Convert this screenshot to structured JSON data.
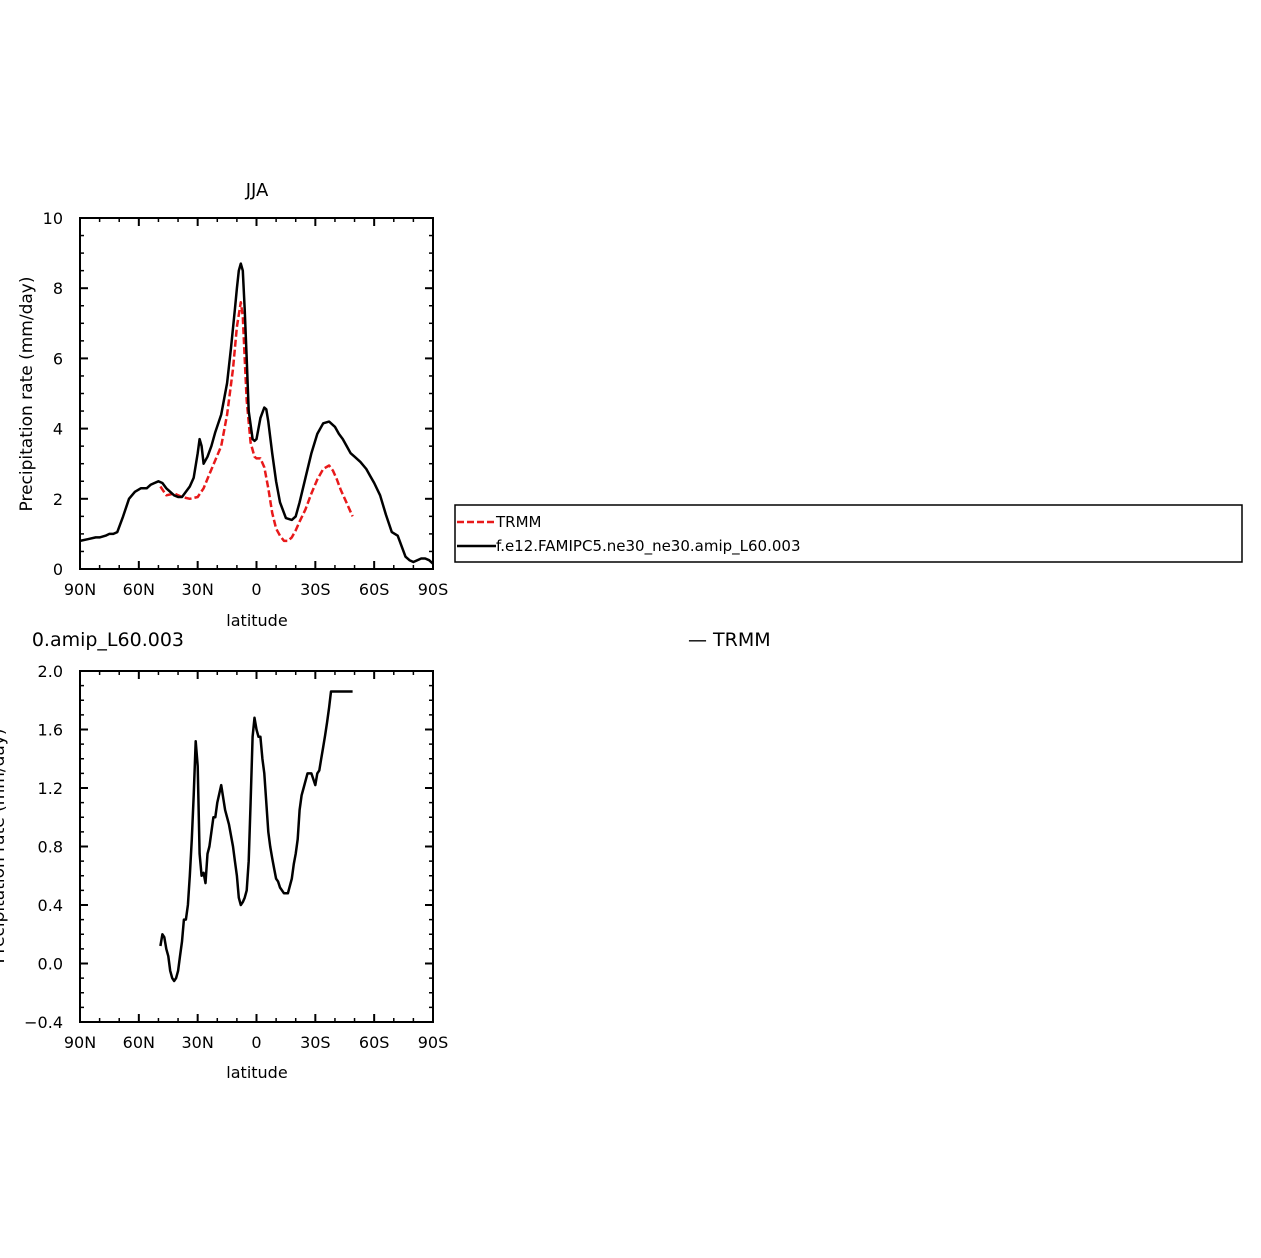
{
  "chart_data": [
    {
      "type": "line",
      "title": "JJA",
      "xlabel": "latitude",
      "ylabel": "Precipitation rate (mm/day)",
      "xlim": [
        90,
        -90
      ],
      "ylim": [
        0,
        10
      ],
      "xticks": [
        90,
        60,
        30,
        0,
        -30,
        -60,
        -90
      ],
      "xtick_labels": [
        "90N",
        "60N",
        "30N",
        "0",
        "30S",
        "60S",
        "90S"
      ],
      "yticks": [
        0,
        2,
        4,
        6,
        8,
        10
      ],
      "ytick_labels": [
        "0",
        "2",
        "4",
        "6",
        "8",
        "10"
      ],
      "grid": false,
      "legend_position": "right",
      "series": [
        {
          "name": "TRMM",
          "color": "#e8191a",
          "dash": "dashed",
          "x": [
            49,
            46,
            42,
            38,
            34,
            30,
            27,
            24,
            21,
            18,
            15,
            12,
            10,
            8,
            7,
            6,
            5,
            3,
            1,
            0,
            -2,
            -4,
            -6,
            -8,
            -10,
            -12,
            -14,
            -16,
            -18,
            -20,
            -22,
            -25,
            -28,
            -31,
            -34,
            -37,
            -39,
            -41,
            -43,
            -45,
            -47,
            -49
          ],
          "y": [
            2.35,
            2.1,
            2.15,
            2.05,
            2.0,
            2.05,
            2.3,
            2.7,
            3.1,
            3.5,
            4.4,
            5.7,
            6.9,
            7.6,
            7.2,
            6.0,
            4.8,
            3.6,
            3.2,
            3.15,
            3.15,
            2.9,
            2.3,
            1.6,
            1.15,
            0.95,
            0.8,
            0.8,
            0.9,
            1.1,
            1.35,
            1.7,
            2.15,
            2.55,
            2.85,
            2.95,
            2.8,
            2.55,
            2.25,
            2.0,
            1.75,
            1.5
          ]
        },
        {
          "name": "f.e12.FAMIPC5.ne30_ne30.amip_L60.003",
          "color": "#000000",
          "dash": "solid",
          "x": [
            90,
            86,
            82,
            80,
            77,
            75,
            73,
            71,
            68,
            65,
            62,
            59,
            56,
            54,
            52,
            50,
            48,
            46,
            44,
            42,
            40,
            38,
            36,
            34,
            32,
            30,
            29,
            28,
            27,
            25,
            23,
            21,
            18,
            15,
            13,
            11,
            10,
            9,
            8,
            7,
            6,
            5,
            4,
            2,
            1,
            0,
            -2,
            -4,
            -5,
            -6,
            -8,
            -10,
            -12,
            -15,
            -18,
            -20,
            -22,
            -25,
            -28,
            -31,
            -34,
            -37,
            -40,
            -42,
            -44,
            -46,
            -48,
            -50,
            -53,
            -56,
            -58,
            -60,
            -63,
            -66,
            -69,
            -72,
            -74,
            -76,
            -78,
            -80,
            -82,
            -84,
            -86,
            -88,
            -90
          ],
          "y": [
            0.8,
            0.85,
            0.9,
            0.9,
            0.95,
            1.0,
            1.0,
            1.05,
            1.5,
            2.0,
            2.2,
            2.3,
            2.3,
            2.4,
            2.45,
            2.5,
            2.45,
            2.3,
            2.2,
            2.1,
            2.05,
            2.05,
            2.2,
            2.35,
            2.6,
            3.3,
            3.7,
            3.5,
            3.0,
            3.2,
            3.5,
            3.9,
            4.4,
            5.3,
            6.3,
            7.4,
            8.0,
            8.5,
            8.7,
            8.5,
            7.4,
            6.0,
            4.5,
            3.7,
            3.65,
            3.7,
            4.3,
            4.6,
            4.55,
            4.2,
            3.3,
            2.5,
            1.9,
            1.45,
            1.4,
            1.5,
            1.9,
            2.6,
            3.3,
            3.85,
            4.15,
            4.2,
            4.05,
            3.85,
            3.7,
            3.5,
            3.3,
            3.2,
            3.05,
            2.85,
            2.65,
            2.45,
            2.1,
            1.55,
            1.05,
            0.95,
            0.65,
            0.35,
            0.25,
            0.2,
            0.25,
            0.3,
            0.3,
            0.25,
            0.15
          ]
        }
      ]
    },
    {
      "type": "line",
      "title": "0.amip_L60.003",
      "title_right": "— TRMM",
      "xlabel": "latitude",
      "ylabel": "Precipitation rate (mm/day)",
      "xlim": [
        90,
        -90
      ],
      "ylim": [
        -0.4,
        2.0
      ],
      "xticks": [
        90,
        60,
        30,
        0,
        -30,
        -60,
        -90
      ],
      "xtick_labels": [
        "90N",
        "60N",
        "30N",
        "0",
        "30S",
        "60S",
        "90S"
      ],
      "yticks": [
        -0.4,
        0.0,
        0.4,
        0.8,
        1.2,
        1.6,
        2.0
      ],
      "ytick_labels": [
        "−0.4",
        "0.0",
        "0.4",
        "0.8",
        "1.2",
        "1.6",
        "2.0"
      ],
      "grid": false,
      "series": [
        {
          "color": "#000000",
          "dash": "solid",
          "x": [
            49,
            48,
            47,
            46,
            45,
            44,
            43,
            42,
            41,
            40,
            39,
            38,
            37,
            36,
            35,
            34,
            33,
            32,
            31,
            30,
            29,
            28,
            27,
            26,
            25,
            24,
            23,
            22,
            21,
            20,
            18,
            16,
            14,
            12,
            11,
            10,
            9,
            8,
            7,
            6,
            5,
            4,
            3,
            2,
            1,
            0,
            -1,
            -2,
            -3,
            -4,
            -5,
            -6,
            -7,
            -8,
            -9,
            -10,
            -11,
            -12,
            -14,
            -16,
            -18,
            -19,
            -20,
            -21,
            -22,
            -23,
            -24,
            -26,
            -28,
            -30,
            -31,
            -32,
            -33,
            -34,
            -35,
            -36,
            -37,
            -38,
            -39,
            -40,
            -41,
            -42,
            -43,
            -44,
            -45,
            -46,
            -47,
            -48,
            -49
          ],
          "y": [
            0.12,
            0.2,
            0.18,
            0.1,
            0.05,
            -0.05,
            -0.1,
            -0.12,
            -0.1,
            -0.05,
            0.05,
            0.15,
            0.3,
            0.3,
            0.4,
            0.6,
            0.85,
            1.15,
            1.52,
            1.35,
            0.75,
            0.6,
            0.62,
            0.55,
            0.75,
            0.8,
            0.9,
            1.0,
            1.0,
            1.1,
            1.22,
            1.05,
            0.95,
            0.8,
            0.7,
            0.6,
            0.45,
            0.4,
            0.42,
            0.45,
            0.5,
            0.7,
            1.1,
            1.55,
            1.68,
            1.6,
            1.55,
            1.55,
            1.4,
            1.3,
            1.1,
            0.9,
            0.8,
            0.72,
            0.65,
            0.58,
            0.56,
            0.52,
            0.48,
            0.48,
            0.58,
            0.68,
            0.75,
            0.85,
            1.05,
            1.15,
            1.2,
            1.3,
            1.3,
            1.22,
            1.3,
            1.32,
            1.4,
            1.48,
            1.56,
            1.65,
            1.75,
            1.86,
            1.86,
            1.86,
            1.86,
            1.86,
            1.86,
            1.86,
            1.86,
            1.86,
            1.86,
            1.86,
            1.86
          ]
        }
      ]
    }
  ]
}
